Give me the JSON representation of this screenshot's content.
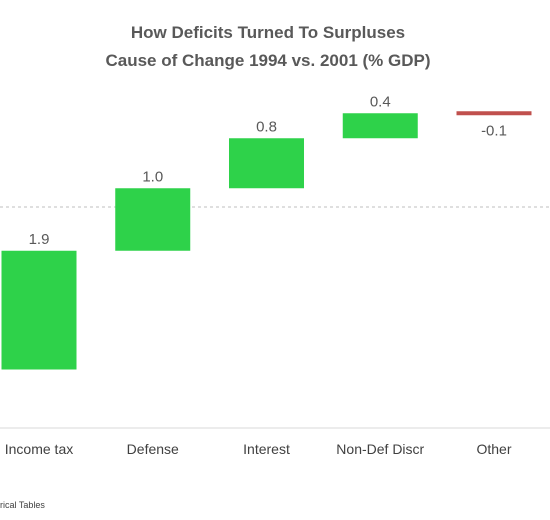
{
  "chart_data": {
    "type": "bar",
    "subtype": "waterfall",
    "title": "How Deficits Turned To Surpluses",
    "subtitle": "Cause of Change 1994 vs. 2001 (% GDP)",
    "categories": [
      "Income tax",
      "Defense",
      "Interest",
      "Non-Def Discr",
      "Other"
    ],
    "values": [
      1.9,
      1.0,
      0.8,
      0.4,
      -0.1
    ],
    "data_labels": [
      "1.9",
      "1.0",
      "0.8",
      "0.4",
      "-0.1"
    ],
    "baseline": -2.6,
    "zero_line": 0,
    "grid": false,
    "source": "rical Tables",
    "colors": {
      "positive": "#2ed24a",
      "negative": "#c0504d",
      "zero_line": "#bfbfbf",
      "axis": "#d9d9d9"
    }
  }
}
